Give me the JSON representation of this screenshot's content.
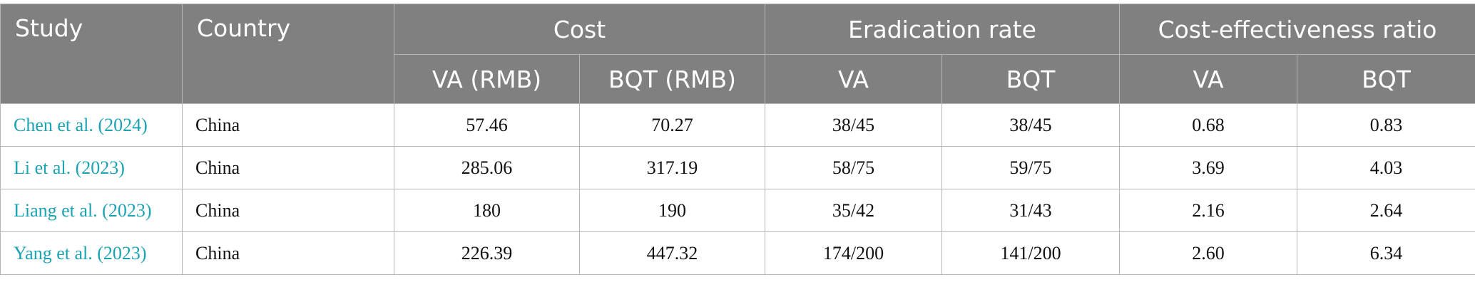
{
  "table": {
    "header": {
      "study": "Study",
      "country": "Country",
      "groups": [
        "Cost",
        "Eradication rate",
        "Cost-effectiveness ratio"
      ],
      "subheaders": [
        "VA (RMB)",
        "BQT (RMB)",
        "VA",
        "BQT",
        "VA",
        "BQT"
      ]
    },
    "rows": [
      [
        "Chen et al. (2024)",
        "China",
        "57.46",
        "70.27",
        "38/45",
        "38/45",
        "0.68",
        "0.83"
      ],
      [
        "Li et al. (2023)",
        "China",
        "285.06",
        "317.19",
        "58/75",
        "59/75",
        "3.69",
        "4.03"
      ],
      [
        "Liang et al. (2023)",
        "China",
        "180",
        "190",
        "35/42",
        "31/43",
        "2.16",
        "2.64"
      ],
      [
        "Yang et al. (2023)",
        "China",
        "226.39",
        "447.32",
        "174/200",
        "141/200",
        "2.60",
        "6.34"
      ]
    ]
  }
}
